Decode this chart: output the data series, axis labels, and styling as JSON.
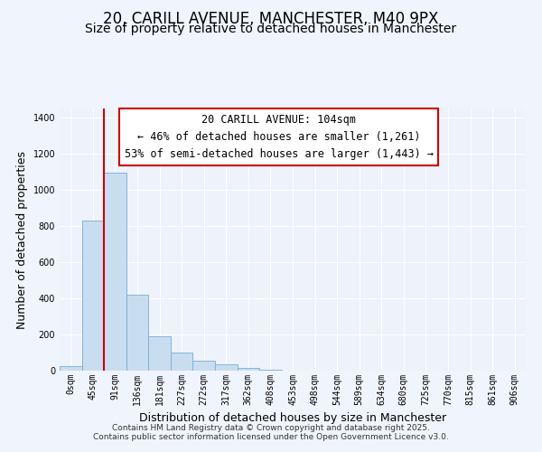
{
  "title_line1": "20, CARILL AVENUE, MANCHESTER, M40 9PX",
  "title_line2": "Size of property relative to detached houses in Manchester",
  "xlabel": "Distribution of detached houses by size in Manchester",
  "ylabel": "Number of detached properties",
  "bar_labels": [
    "0sqm",
    "45sqm",
    "91sqm",
    "136sqm",
    "181sqm",
    "227sqm",
    "272sqm",
    "317sqm",
    "362sqm",
    "408sqm",
    "453sqm",
    "498sqm",
    "544sqm",
    "589sqm",
    "634sqm",
    "680sqm",
    "725sqm",
    "770sqm",
    "815sqm",
    "861sqm",
    "906sqm"
  ],
  "bar_heights": [
    25,
    830,
    1095,
    420,
    190,
    100,
    55,
    35,
    15,
    5,
    2,
    1,
    0,
    0,
    0,
    0,
    0,
    0,
    0,
    0,
    0
  ],
  "bar_color": "#c8ddf0",
  "bar_edge_color": "#7aadd4",
  "vline_x": 2,
  "vline_color": "#cc0000",
  "annotation_text": "20 CARILL AVENUE: 104sqm\n← 46% of detached houses are smaller (1,261)\n53% of semi-detached houses are larger (1,443) →",
  "ylim": [
    0,
    1450
  ],
  "yticks": [
    0,
    200,
    400,
    600,
    800,
    1000,
    1200,
    1400
  ],
  "bg_color": "#f0f4fc",
  "plot_bg_color": "#edf2fb",
  "grid_color": "#ffffff",
  "footer_line1": "Contains HM Land Registry data © Crown copyright and database right 2025.",
  "footer_line2": "Contains public sector information licensed under the Open Government Licence v3.0.",
  "title_fontsize": 12,
  "subtitle_fontsize": 10,
  "axis_label_fontsize": 9,
  "tick_fontsize": 7,
  "annotation_fontsize": 8.5,
  "footer_fontsize": 6.5
}
